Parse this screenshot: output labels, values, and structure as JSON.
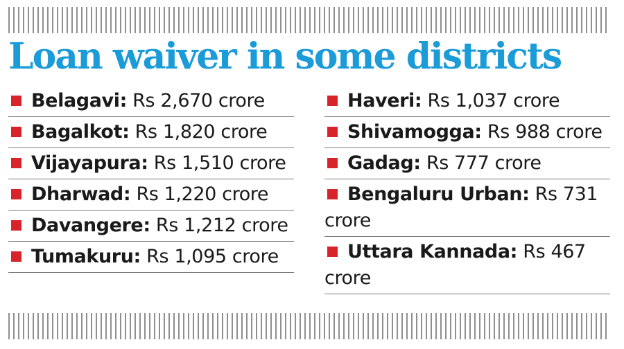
{
  "title": "Loan waiver in some districts",
  "colors": {
    "title": "#1b9bd7",
    "bullet": "#d8232a"
  },
  "left_items": [
    {
      "name": "Belagavi:",
      "amount": " Rs 2,670 crore"
    },
    {
      "name": "Bagalkot:",
      "amount": " Rs 1,820 crore"
    },
    {
      "name": "Vijayapura:",
      "amount": " Rs 1,510 crore"
    },
    {
      "name": "Dharwad:",
      "amount": " Rs 1,220 crore"
    },
    {
      "name": "Davangere:",
      "amount": " Rs 1,212 crore"
    },
    {
      "name": "Tumakuru:",
      "amount": " Rs 1,095 crore"
    }
  ],
  "right_items": [
    {
      "name": "Haveri:",
      "amount": " Rs 1,037 crore"
    },
    {
      "name": "Shivamogga:",
      "amount": " Rs 988 crore"
    },
    {
      "name": "Gadag:",
      "amount": " Rs 777 crore"
    },
    {
      "name": "Bengaluru Urban:",
      "amount": " Rs 731 crore"
    },
    {
      "name": "Uttara Kannada:",
      "amount": " Rs 467 crore"
    }
  ]
}
